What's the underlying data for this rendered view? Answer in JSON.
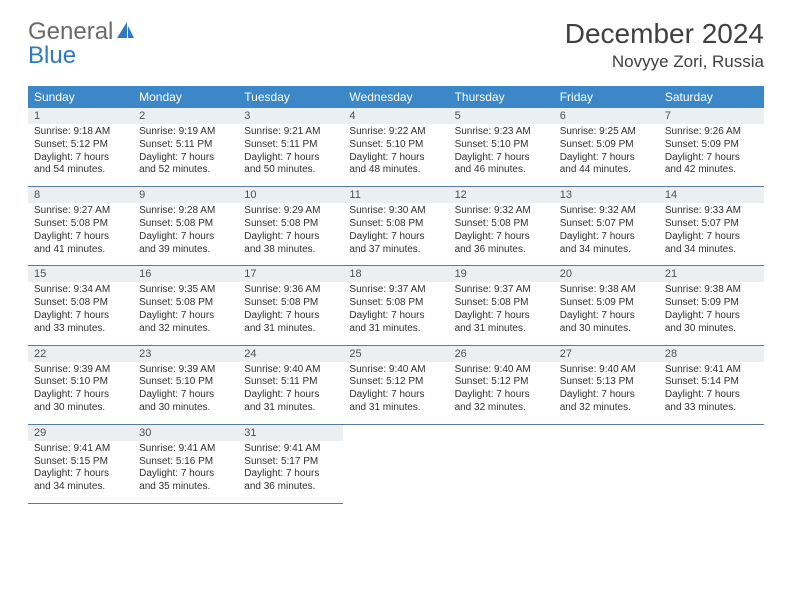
{
  "brand": {
    "line1": "General",
    "line2": "Blue",
    "color1": "#6a6a6a",
    "color2": "#2d7ac0"
  },
  "title": "December 2024",
  "location": "Novyye Zori, Russia",
  "header_bg": "#3b87c8",
  "daynum_bg": "#eceff1",
  "rule_color": "#5a7a99",
  "weekdays": [
    "Sunday",
    "Monday",
    "Tuesday",
    "Wednesday",
    "Thursday",
    "Friday",
    "Saturday"
  ],
  "days": [
    {
      "n": "1",
      "sr": "9:18 AM",
      "ss": "5:12 PM",
      "dl": "7 hours and 54 minutes."
    },
    {
      "n": "2",
      "sr": "9:19 AM",
      "ss": "5:11 PM",
      "dl": "7 hours and 52 minutes."
    },
    {
      "n": "3",
      "sr": "9:21 AM",
      "ss": "5:11 PM",
      "dl": "7 hours and 50 minutes."
    },
    {
      "n": "4",
      "sr": "9:22 AM",
      "ss": "5:10 PM",
      "dl": "7 hours and 48 minutes."
    },
    {
      "n": "5",
      "sr": "9:23 AM",
      "ss": "5:10 PM",
      "dl": "7 hours and 46 minutes."
    },
    {
      "n": "6",
      "sr": "9:25 AM",
      "ss": "5:09 PM",
      "dl": "7 hours and 44 minutes."
    },
    {
      "n": "7",
      "sr": "9:26 AM",
      "ss": "5:09 PM",
      "dl": "7 hours and 42 minutes."
    },
    {
      "n": "8",
      "sr": "9:27 AM",
      "ss": "5:08 PM",
      "dl": "7 hours and 41 minutes."
    },
    {
      "n": "9",
      "sr": "9:28 AM",
      "ss": "5:08 PM",
      "dl": "7 hours and 39 minutes."
    },
    {
      "n": "10",
      "sr": "9:29 AM",
      "ss": "5:08 PM",
      "dl": "7 hours and 38 minutes."
    },
    {
      "n": "11",
      "sr": "9:30 AM",
      "ss": "5:08 PM",
      "dl": "7 hours and 37 minutes."
    },
    {
      "n": "12",
      "sr": "9:32 AM",
      "ss": "5:08 PM",
      "dl": "7 hours and 36 minutes."
    },
    {
      "n": "13",
      "sr": "9:32 AM",
      "ss": "5:07 PM",
      "dl": "7 hours and 34 minutes."
    },
    {
      "n": "14",
      "sr": "9:33 AM",
      "ss": "5:07 PM",
      "dl": "7 hours and 34 minutes."
    },
    {
      "n": "15",
      "sr": "9:34 AM",
      "ss": "5:08 PM",
      "dl": "7 hours and 33 minutes."
    },
    {
      "n": "16",
      "sr": "9:35 AM",
      "ss": "5:08 PM",
      "dl": "7 hours and 32 minutes."
    },
    {
      "n": "17",
      "sr": "9:36 AM",
      "ss": "5:08 PM",
      "dl": "7 hours and 31 minutes."
    },
    {
      "n": "18",
      "sr": "9:37 AM",
      "ss": "5:08 PM",
      "dl": "7 hours and 31 minutes."
    },
    {
      "n": "19",
      "sr": "9:37 AM",
      "ss": "5:08 PM",
      "dl": "7 hours and 31 minutes."
    },
    {
      "n": "20",
      "sr": "9:38 AM",
      "ss": "5:09 PM",
      "dl": "7 hours and 30 minutes."
    },
    {
      "n": "21",
      "sr": "9:38 AM",
      "ss": "5:09 PM",
      "dl": "7 hours and 30 minutes."
    },
    {
      "n": "22",
      "sr": "9:39 AM",
      "ss": "5:10 PM",
      "dl": "7 hours and 30 minutes."
    },
    {
      "n": "23",
      "sr": "9:39 AM",
      "ss": "5:10 PM",
      "dl": "7 hours and 30 minutes."
    },
    {
      "n": "24",
      "sr": "9:40 AM",
      "ss": "5:11 PM",
      "dl": "7 hours and 31 minutes."
    },
    {
      "n": "25",
      "sr": "9:40 AM",
      "ss": "5:12 PM",
      "dl": "7 hours and 31 minutes."
    },
    {
      "n": "26",
      "sr": "9:40 AM",
      "ss": "5:12 PM",
      "dl": "7 hours and 32 minutes."
    },
    {
      "n": "27",
      "sr": "9:40 AM",
      "ss": "5:13 PM",
      "dl": "7 hours and 32 minutes."
    },
    {
      "n": "28",
      "sr": "9:41 AM",
      "ss": "5:14 PM",
      "dl": "7 hours and 33 minutes."
    },
    {
      "n": "29",
      "sr": "9:41 AM",
      "ss": "5:15 PM",
      "dl": "7 hours and 34 minutes."
    },
    {
      "n": "30",
      "sr": "9:41 AM",
      "ss": "5:16 PM",
      "dl": "7 hours and 35 minutes."
    },
    {
      "n": "31",
      "sr": "9:41 AM",
      "ss": "5:17 PM",
      "dl": "7 hours and 36 minutes."
    }
  ],
  "labels": {
    "sunrise": "Sunrise: ",
    "sunset": "Sunset: ",
    "daylight": "Daylight: "
  }
}
